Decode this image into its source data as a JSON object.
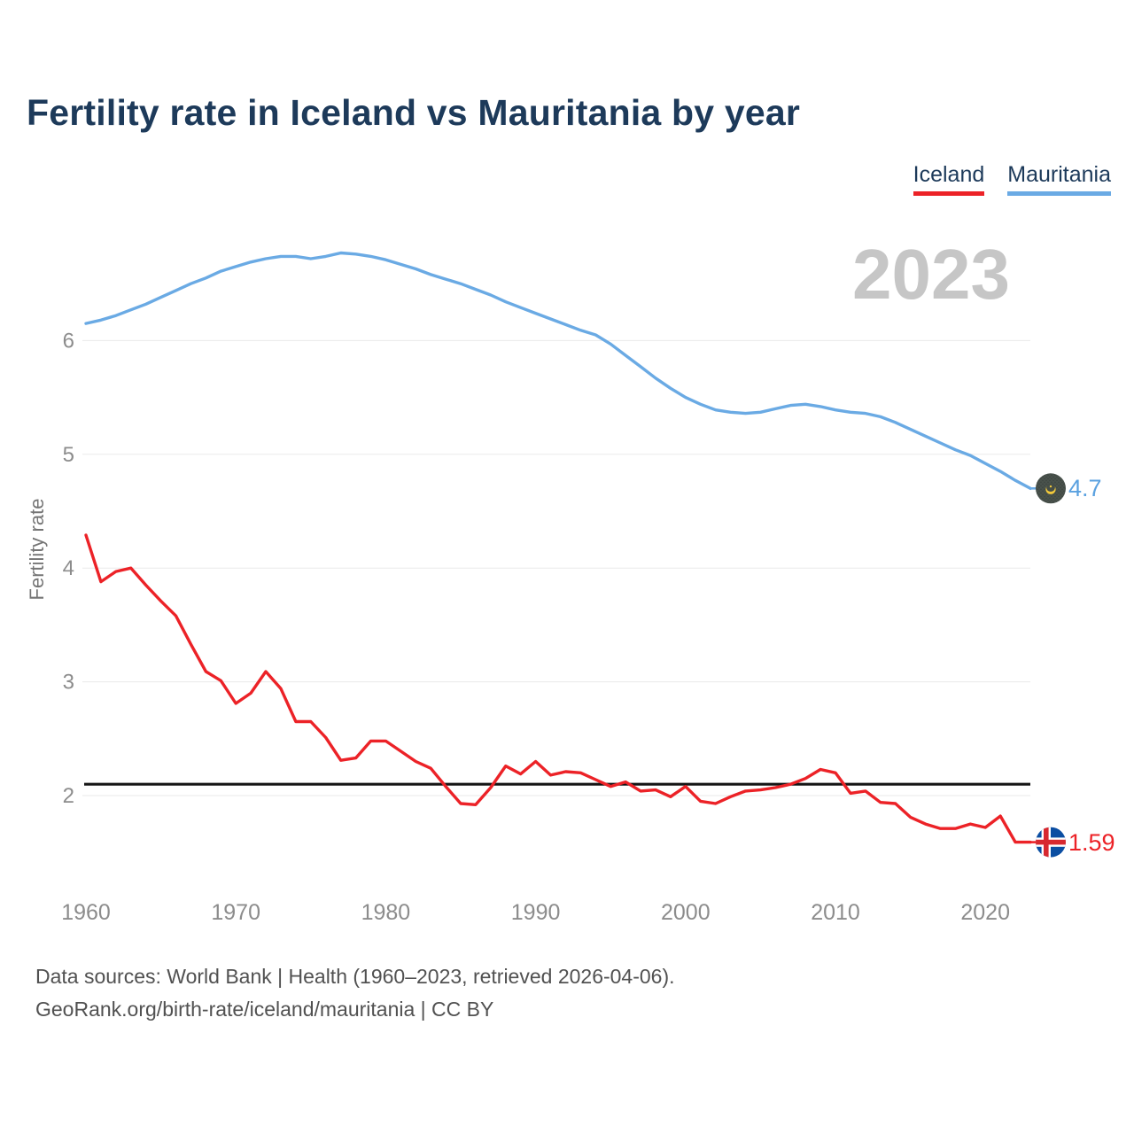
{
  "title": "Fertility rate in Iceland vs Mauritania by year",
  "watermark": "2023",
  "footer": {
    "line1": "Data sources: World Bank | Health (1960–2023, retrieved 2026-04-06).",
    "line2": "GeoRank.org/birth-rate/iceland/mauritania | CC BY"
  },
  "colors": {
    "title": "#1d3a5a",
    "iceland": "#ec2227",
    "mauritania": "#6aaae4",
    "gridline": "#eaeaea",
    "tick_text": "#8c8c8c",
    "watermark": "#c6c6c6",
    "reference_line": "#161616"
  },
  "chart_data": {
    "type": "line",
    "title": "Fertility rate in Iceland vs Mauritania by year",
    "xlabel": "",
    "ylabel": "Fertility rate",
    "xticks": [
      1960,
      1970,
      1980,
      1990,
      2000,
      2010,
      2020
    ],
    "yticks": [
      2,
      3,
      4,
      5,
      6
    ],
    "xlim": [
      1960,
      2023
    ],
    "ylim": [
      1.4,
      7.2
    ],
    "grid": true,
    "legend_position": "top-right",
    "reference_line": 2.1,
    "x": [
      1960,
      1961,
      1962,
      1963,
      1964,
      1965,
      1966,
      1967,
      1968,
      1969,
      1970,
      1971,
      1972,
      1973,
      1974,
      1975,
      1976,
      1977,
      1978,
      1979,
      1980,
      1981,
      1982,
      1983,
      1984,
      1985,
      1986,
      1987,
      1988,
      1989,
      1990,
      1991,
      1992,
      1993,
      1994,
      1995,
      1996,
      1997,
      1998,
      1999,
      2000,
      2001,
      2002,
      2003,
      2004,
      2005,
      2006,
      2007,
      2008,
      2009,
      2010,
      2011,
      2012,
      2013,
      2014,
      2015,
      2016,
      2017,
      2018,
      2019,
      2020,
      2021,
      2022,
      2023
    ],
    "series": [
      {
        "name": "Iceland",
        "color": "#ec2227",
        "end_label": "1.59",
        "end_value": 1.59,
        "values": [
          4.29,
          3.88,
          3.97,
          4.0,
          3.85,
          3.71,
          3.58,
          3.33,
          3.09,
          3.01,
          2.81,
          2.9,
          3.09,
          2.94,
          2.65,
          2.65,
          2.51,
          2.31,
          2.33,
          2.48,
          2.48,
          2.39,
          2.3,
          2.24,
          2.08,
          1.93,
          1.92,
          2.07,
          2.26,
          2.19,
          2.3,
          2.18,
          2.21,
          2.2,
          2.14,
          2.08,
          2.12,
          2.04,
          2.05,
          1.99,
          2.08,
          1.95,
          1.93,
          1.99,
          2.04,
          2.05,
          2.07,
          2.1,
          2.15,
          2.23,
          2.2,
          2.02,
          2.04,
          1.94,
          1.93,
          1.81,
          1.75,
          1.71,
          1.71,
          1.75,
          1.72,
          1.82,
          1.59,
          1.59
        ]
      },
      {
        "name": "Mauritania",
        "color": "#6aaae4",
        "end_label": "4.7",
        "end_value": 4.7,
        "values": [
          6.15,
          6.18,
          6.22,
          6.27,
          6.32,
          6.38,
          6.44,
          6.5,
          6.55,
          6.61,
          6.65,
          6.69,
          6.72,
          6.74,
          6.74,
          6.72,
          6.74,
          6.77,
          6.76,
          6.74,
          6.71,
          6.67,
          6.63,
          6.58,
          6.54,
          6.5,
          6.45,
          6.4,
          6.34,
          6.29,
          6.24,
          6.19,
          6.14,
          6.09,
          6.05,
          5.97,
          5.87,
          5.77,
          5.67,
          5.58,
          5.5,
          5.44,
          5.39,
          5.37,
          5.36,
          5.37,
          5.4,
          5.43,
          5.44,
          5.42,
          5.39,
          5.37,
          5.36,
          5.33,
          5.28,
          5.22,
          5.16,
          5.1,
          5.04,
          4.99,
          4.92,
          4.85,
          4.77,
          4.7
        ]
      }
    ]
  }
}
